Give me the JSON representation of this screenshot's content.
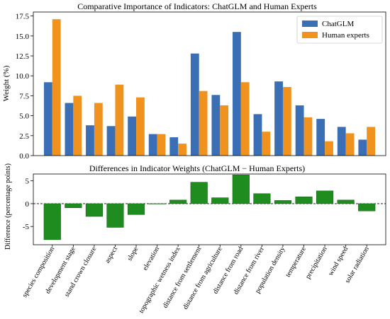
{
  "chart_data": [
    {
      "type": "bar",
      "title": "Comparative Importance of Indicators: ChatGLM and Human Experts",
      "xlabel": "",
      "ylabel": "Weight (%)",
      "ylim": [
        0,
        18
      ],
      "yticks": [
        0.0,
        2.5,
        5.0,
        7.5,
        10.0,
        12.5,
        15.0,
        17.5
      ],
      "grid": false,
      "legend": "top-right",
      "categories": [
        "species composition",
        "development stage",
        "stand crown closure",
        "aspect",
        "slope",
        "elevation",
        "topographic wetness index",
        "distance from settlement",
        "distance from agriculture",
        "distance from road",
        "distance from river",
        "population density",
        "temperature",
        "precipitation",
        "wind speed",
        "solar radiation"
      ],
      "series": [
        {
          "name": "ChatGLM",
          "color": "#3a6fb5",
          "values": [
            9.2,
            6.6,
            3.8,
            3.7,
            4.9,
            2.7,
            2.3,
            12.8,
            7.6,
            15.5,
            5.2,
            9.3,
            6.3,
            4.6,
            3.6,
            2.0
          ]
        },
        {
          "name": "Human experts",
          "color": "#f0921e",
          "values": [
            17.1,
            7.5,
            6.6,
            8.9,
            7.3,
            2.7,
            1.5,
            8.1,
            6.3,
            9.2,
            3.0,
            8.6,
            4.8,
            1.8,
            2.8,
            3.6
          ]
        }
      ]
    },
    {
      "type": "bar",
      "title": "Differences in Indicator Weights (ChatGLM − Human Experts)",
      "xlabel": "",
      "ylabel": "Difference (percentage points)",
      "ylim": [
        -9,
        6.5
      ],
      "yticks": [
        -5,
        0,
        5
      ],
      "reference_line": 0,
      "grid": false,
      "color": "#1e8c1e",
      "categories": [
        "species composition",
        "development stage",
        "stand crown closure",
        "aspect",
        "slope",
        "elevation",
        "topographic wetness index",
        "distance from settlement",
        "distance from agriculture",
        "distance from road",
        "distance from river",
        "population density",
        "temperature",
        "precipitation",
        "wind speed",
        "solar radiation"
      ],
      "values": [
        -7.9,
        -0.9,
        -2.8,
        -5.2,
        -2.4,
        0.0,
        0.8,
        4.7,
        1.3,
        6.3,
        2.2,
        0.7,
        1.5,
        2.8,
        0.8,
        -1.6
      ]
    }
  ]
}
